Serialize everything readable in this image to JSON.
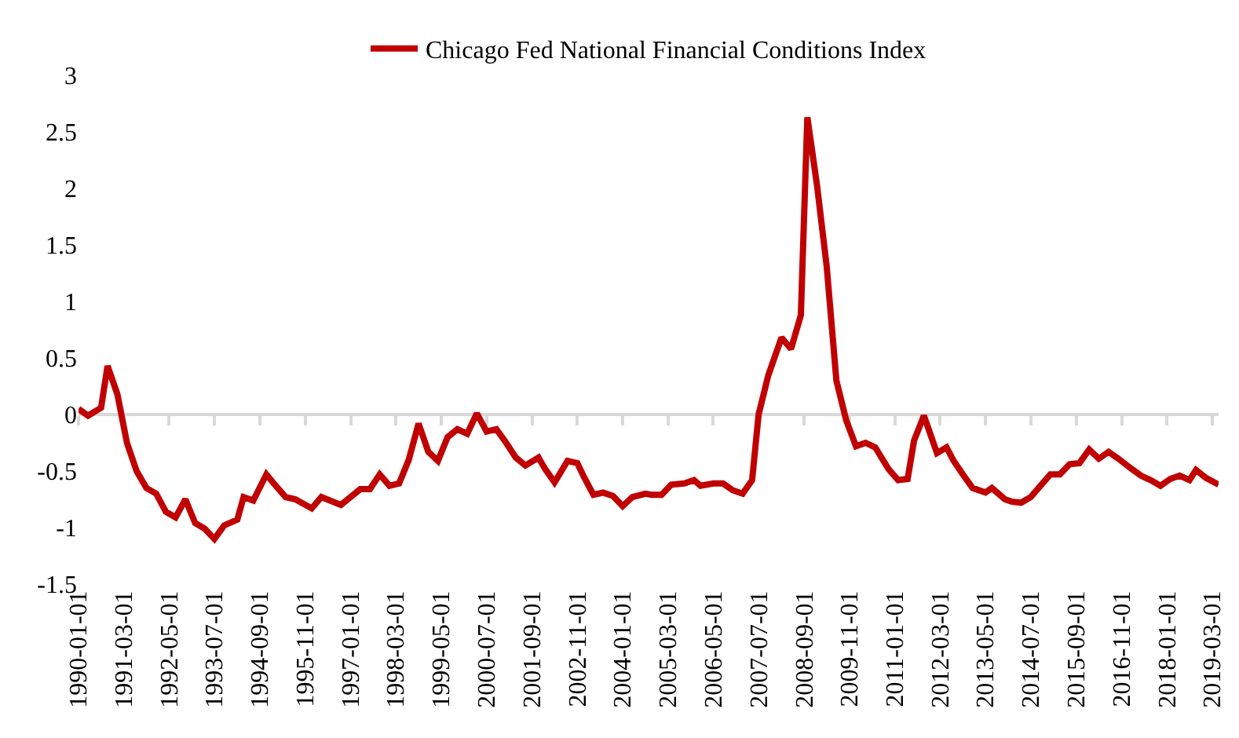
{
  "chart_data": {
    "type": "line",
    "x": [
      "1990-01",
      "1990-04",
      "1990-08",
      "1990-10",
      "1991-01",
      "1991-04",
      "1991-07",
      "1991-10",
      "1992-01",
      "1992-04",
      "1992-07",
      "1992-10",
      "1993-01",
      "1993-04",
      "1993-07",
      "1993-10",
      "1994-02",
      "1994-04",
      "1994-07",
      "1994-11",
      "1995-01",
      "1995-05",
      "1995-08",
      "1996-01",
      "1996-04",
      "1996-10",
      "1997-04",
      "1997-07",
      "1997-10",
      "1998-01",
      "1998-04",
      "1998-07",
      "1998-10",
      "1999-01",
      "1999-04",
      "1999-07",
      "1999-10",
      "2000-01",
      "2000-04",
      "2000-07",
      "2000-10",
      "2001-01",
      "2001-04",
      "2001-07",
      "2001-11",
      "2002-01",
      "2002-04",
      "2002-08",
      "2002-11",
      "2003-01",
      "2003-04",
      "2003-07",
      "2003-10",
      "2004-01",
      "2004-04",
      "2004-08",
      "2004-10",
      "2005-01",
      "2005-04",
      "2005-08",
      "2005-11",
      "2006-01",
      "2006-05",
      "2006-08",
      "2006-11",
      "2007-02",
      "2007-05",
      "2007-07",
      "2007-10",
      "2008-02",
      "2008-05",
      "2008-08",
      "2008-10",
      "2009-01",
      "2009-04",
      "2009-07",
      "2009-10",
      "2010-01",
      "2010-04",
      "2010-07",
      "2010-11",
      "2011-02",
      "2011-05",
      "2011-07",
      "2011-10",
      "2012-02",
      "2012-05",
      "2012-07",
      "2012-10",
      "2013-01",
      "2013-05",
      "2013-07",
      "2013-11",
      "2014-01",
      "2014-04",
      "2014-07",
      "2014-10",
      "2015-01",
      "2015-04",
      "2015-07",
      "2015-10",
      "2016-01",
      "2016-04",
      "2016-07",
      "2016-10",
      "2017-02",
      "2017-05",
      "2017-08",
      "2017-11",
      "2018-02",
      "2018-05",
      "2018-08",
      "2018-10",
      "2019-01",
      "2019-05"
    ],
    "series": [
      {
        "name": "Chicago Fed National Financial Conditions Index",
        "color": "#c00000",
        "values": [
          0.05,
          -0.01,
          0.06,
          0.43,
          0.18,
          -0.25,
          -0.5,
          -0.65,
          -0.7,
          -0.86,
          -0.91,
          -0.75,
          -0.96,
          -1.01,
          -1.1,
          -0.98,
          -0.93,
          -0.73,
          -0.76,
          -0.53,
          -0.6,
          -0.73,
          -0.75,
          -0.83,
          -0.73,
          -0.8,
          -0.66,
          -0.66,
          -0.53,
          -0.63,
          -0.61,
          -0.4,
          -0.08,
          -0.33,
          -0.41,
          -0.2,
          -0.13,
          -0.17,
          0.01,
          -0.15,
          -0.13,
          -0.25,
          -0.38,
          -0.45,
          -0.38,
          -0.48,
          -0.6,
          -0.41,
          -0.43,
          -0.55,
          -0.71,
          -0.69,
          -0.72,
          -0.81,
          -0.73,
          -0.7,
          -0.71,
          -0.71,
          -0.62,
          -0.61,
          -0.58,
          -0.63,
          -0.61,
          -0.61,
          -0.67,
          -0.7,
          -0.58,
          0.0,
          0.35,
          0.68,
          0.58,
          0.88,
          2.63,
          2.02,
          1.31,
          0.3,
          -0.05,
          -0.28,
          -0.25,
          -0.29,
          -0.48,
          -0.58,
          -0.57,
          -0.23,
          -0.01,
          -0.34,
          -0.29,
          -0.4,
          -0.53,
          -0.65,
          -0.69,
          -0.65,
          -0.75,
          -0.77,
          -0.78,
          -0.73,
          -0.63,
          -0.53,
          -0.53,
          -0.44,
          -0.43,
          -0.31,
          -0.39,
          -0.33,
          -0.39,
          -0.48,
          -0.54,
          -0.58,
          -0.63,
          -0.57,
          -0.54,
          -0.58,
          -0.49,
          -0.56,
          -0.62
        ]
      }
    ],
    "xlim": [
      "1990-01",
      "2019-05"
    ],
    "xticks": [
      "1990-01-01",
      "1991-03-01",
      "1992-05-01",
      "1993-07-01",
      "1994-09-01",
      "1995-11-01",
      "1997-01-01",
      "1998-03-01",
      "1999-05-01",
      "2000-07-01",
      "2001-09-01",
      "2002-11-01",
      "2004-01-01",
      "2005-03-01",
      "2006-05-01",
      "2007-07-01",
      "2008-09-01",
      "2009-11-01",
      "2011-01-01",
      "2012-03-01",
      "2013-05-01",
      "2014-07-01",
      "2015-09-01",
      "2016-11-01",
      "2018-01-01",
      "2019-03-01"
    ],
    "ylim": [
      -1.5,
      3
    ],
    "yticks": [
      -1.5,
      -1,
      -0.5,
      0,
      0.5,
      1,
      1.5,
      2,
      2.5,
      3
    ],
    "ref_lines": [
      {
        "axis": "y",
        "value": 0,
        "color": "#d9d9d9"
      }
    ],
    "legend": "top",
    "marker": "none",
    "line_style": "solid"
  }
}
